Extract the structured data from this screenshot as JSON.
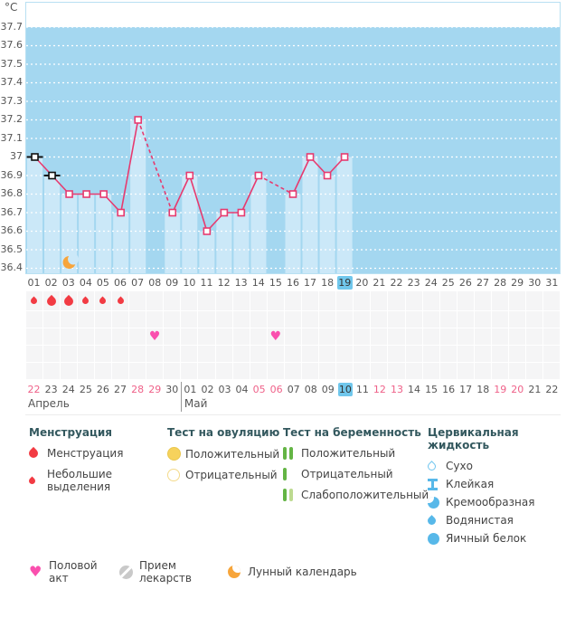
{
  "colors": {
    "plot_bg": "#a4d7f0",
    "bar": "#cbe8f8",
    "plot_border": "#b9e0f2",
    "line": "#e73a6f",
    "marker_black": "#111111",
    "gridline": "#ffffff",
    "menses_drop": "#f23b43",
    "heart": "#fa4fae",
    "moon": "#f7a53b",
    "highlight_day": "#70c7ec",
    "weekend_text": "#ef6189"
  },
  "chart_data": {
    "type": "line",
    "title": "Basal body temperature cycle chart",
    "unit_label": "°C",
    "ylim": [
      36.4,
      37.7
    ],
    "y_step": 0.1,
    "y_tick_labels": [
      "37.7",
      "37.6",
      "37.5",
      "37.4",
      "37.3",
      "37.2",
      "37.1",
      "37",
      "36.9",
      "36.8",
      "36.7",
      "36.6",
      "36.5",
      "36.4"
    ],
    "grid": "dotted-white",
    "cycle_day_labels": [
      "01",
      "02",
      "03",
      "04",
      "05",
      "06",
      "07",
      "08",
      "09",
      "10",
      "11",
      "12",
      "13",
      "14",
      "15",
      "16",
      "17",
      "18",
      "19",
      "20",
      "21",
      "22",
      "23",
      "24",
      "25",
      "26",
      "27",
      "28",
      "29",
      "30",
      "31"
    ],
    "highlighted_cycle_day": 19,
    "series": [
      {
        "name": "basal-temperature",
        "points": [
          {
            "day": 1,
            "temp": 37.0,
            "marker": "black"
          },
          {
            "day": 2,
            "temp": 36.9,
            "marker": "black"
          },
          {
            "day": 3,
            "temp": 36.8,
            "marker": "pink"
          },
          {
            "day": 4,
            "temp": 36.8,
            "marker": "pink"
          },
          {
            "day": 5,
            "temp": 36.8,
            "marker": "pink"
          },
          {
            "day": 6,
            "temp": 36.7,
            "marker": "pink"
          },
          {
            "day": 7,
            "temp": 37.2,
            "marker": "pink"
          },
          {
            "day": 9,
            "temp": 36.7,
            "marker": "pink"
          },
          {
            "day": 10,
            "temp": 36.9,
            "marker": "pink"
          },
          {
            "day": 11,
            "temp": 36.6,
            "marker": "pink"
          },
          {
            "day": 12,
            "temp": 36.7,
            "marker": "pink"
          },
          {
            "day": 13,
            "temp": 36.7,
            "marker": "pink"
          },
          {
            "day": 14,
            "temp": 36.9,
            "marker": "pink"
          },
          {
            "day": 16,
            "temp": 36.8,
            "marker": "pink"
          },
          {
            "day": 17,
            "temp": 37.0,
            "marker": "pink"
          },
          {
            "day": 18,
            "temp": 36.9,
            "marker": "pink"
          },
          {
            "day": 19,
            "temp": 37.0,
            "marker": "pink"
          }
        ]
      }
    ],
    "moon_icon_day": 3,
    "menstruation_days": [
      {
        "day": 1,
        "size": "small"
      },
      {
        "day": 2,
        "size": "big"
      },
      {
        "day": 3,
        "size": "big"
      },
      {
        "day": 4,
        "size": "small"
      },
      {
        "day": 5,
        "size": "small"
      },
      {
        "day": 6,
        "size": "small"
      }
    ],
    "intercourse_days": [
      8,
      15
    ],
    "sticker_row_count": 5,
    "menstruation_row_index": 0,
    "intercourse_row_index": 2,
    "calendar": {
      "april": {
        "label": "Апрель",
        "days": [
          "22",
          "23",
          "24",
          "25",
          "26",
          "27",
          "28",
          "29",
          "30"
        ],
        "weekend_days": [
          "22",
          "28",
          "29"
        ]
      },
      "may": {
        "label": "Май",
        "days": [
          "01",
          "02",
          "03",
          "04",
          "05",
          "06",
          "07",
          "08",
          "09",
          "10",
          "11",
          "12",
          "13",
          "14",
          "15",
          "16",
          "17",
          "18",
          "19",
          "20",
          "21",
          "22"
        ],
        "weekend_days": [
          "05",
          "06",
          "12",
          "13",
          "19",
          "20"
        ],
        "highlighted_day": "10"
      }
    }
  },
  "legend": {
    "groups": [
      {
        "title": "Менструация",
        "items": [
          {
            "icon": "drop-big",
            "label": "Менструация"
          },
          {
            "icon": "drop-small",
            "label": "Небольшие выделения"
          }
        ]
      },
      {
        "title": "Тест на овуляцию",
        "items": [
          {
            "icon": "circle-filled-yellow",
            "label": "Положительный"
          },
          {
            "icon": "circle-outline-yellow",
            "label": "Отрицательный"
          }
        ]
      },
      {
        "title": "Тест на беременность",
        "items": [
          {
            "icon": "bars-two-green",
            "label": "Положительный"
          },
          {
            "icon": "bar-one-green",
            "label": "Отрицательный"
          },
          {
            "icon": "bars-weak-green",
            "label": "Слабоположительный"
          }
        ]
      },
      {
        "title": "Цервикальная жидкость",
        "items": [
          {
            "icon": "drop-outline-blue",
            "label": "Сухо"
          },
          {
            "icon": "ibeam-blue",
            "label": "Клейкая"
          },
          {
            "icon": "crescent-blue",
            "label": "Кремообразная"
          },
          {
            "icon": "drop-filled-blue",
            "label": "Водянистая"
          },
          {
            "icon": "circle-filled-blue",
            "label": "Яичный белок"
          }
        ]
      }
    ],
    "footer_items": [
      {
        "icon": "heart-pink",
        "label": "Половой акт"
      },
      {
        "icon": "pill-gray",
        "label": "Прием лекарств"
      },
      {
        "icon": "moon-orange",
        "label": "Лунный календарь"
      }
    ]
  }
}
